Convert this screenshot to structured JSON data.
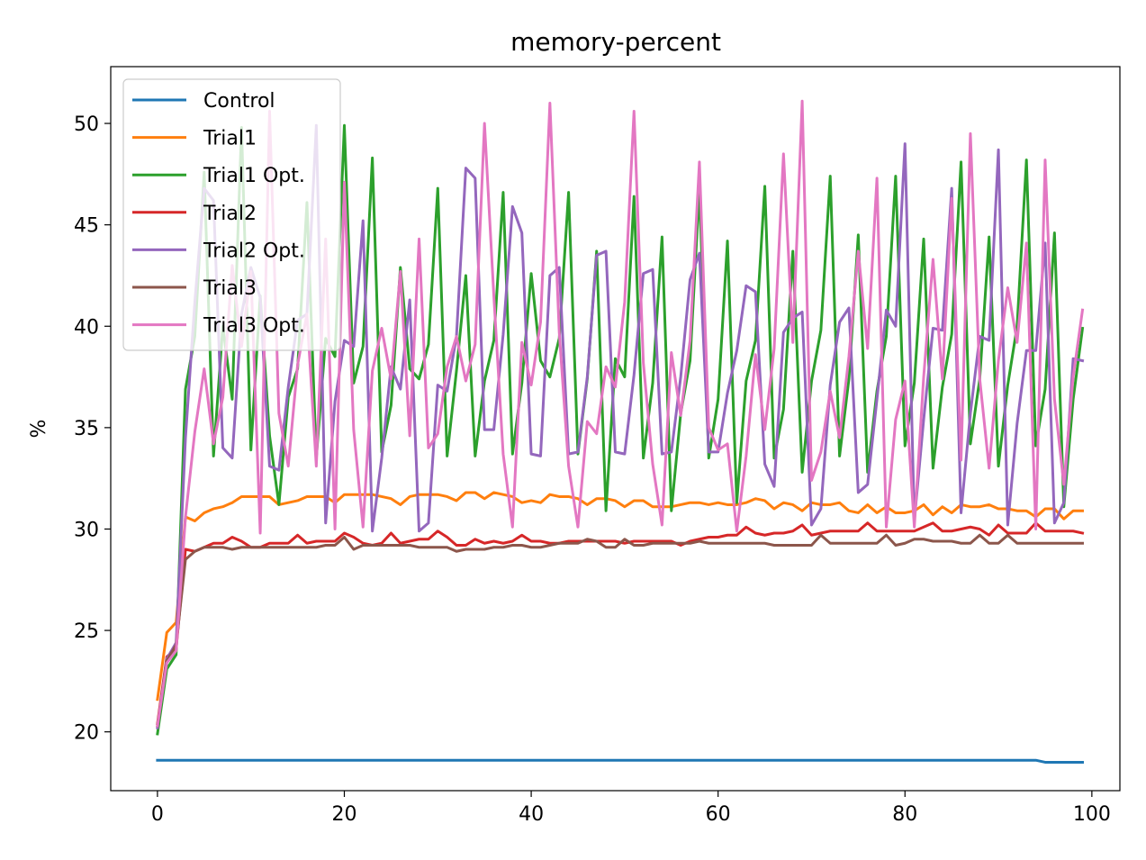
{
  "chart_data": {
    "type": "line",
    "title": "memory-percent",
    "xlabel": "",
    "ylabel": "%",
    "xlim": [
      -5,
      103
    ],
    "ylim": [
      17.1,
      52.8
    ],
    "xticks": [
      0,
      20,
      40,
      60,
      80,
      100
    ],
    "yticks": [
      20,
      25,
      30,
      35,
      40,
      45,
      50
    ],
    "grid": false,
    "legend_position": "upper-left",
    "x": [
      0,
      1,
      2,
      3,
      4,
      5,
      6,
      7,
      8,
      9,
      10,
      11,
      12,
      13,
      14,
      15,
      16,
      17,
      18,
      19,
      20,
      21,
      22,
      23,
      24,
      25,
      26,
      27,
      28,
      29,
      30,
      31,
      32,
      33,
      34,
      35,
      36,
      37,
      38,
      39,
      40,
      41,
      42,
      43,
      44,
      45,
      46,
      47,
      48,
      49,
      50,
      51,
      52,
      53,
      54,
      55,
      56,
      57,
      58,
      59,
      60,
      61,
      62,
      63,
      64,
      65,
      66,
      67,
      68,
      69,
      70,
      71,
      72,
      73,
      74,
      75,
      76,
      77,
      78,
      79,
      80,
      81,
      82,
      83,
      84,
      85,
      86,
      87,
      88,
      89,
      90,
      91,
      92,
      93,
      94,
      95,
      96,
      97,
      98,
      99
    ],
    "series": [
      {
        "name": "Control",
        "color": "#1f77b4",
        "values": [
          18.6,
          18.6,
          18.6,
          18.6,
          18.6,
          18.6,
          18.6,
          18.6,
          18.6,
          18.6,
          18.6,
          18.6,
          18.6,
          18.6,
          18.6,
          18.6,
          18.6,
          18.6,
          18.6,
          18.6,
          18.6,
          18.6,
          18.6,
          18.6,
          18.6,
          18.6,
          18.6,
          18.6,
          18.6,
          18.6,
          18.6,
          18.6,
          18.6,
          18.6,
          18.6,
          18.6,
          18.6,
          18.6,
          18.6,
          18.6,
          18.6,
          18.6,
          18.6,
          18.6,
          18.6,
          18.6,
          18.6,
          18.6,
          18.6,
          18.6,
          18.6,
          18.6,
          18.6,
          18.6,
          18.6,
          18.6,
          18.6,
          18.6,
          18.6,
          18.6,
          18.6,
          18.6,
          18.6,
          18.6,
          18.6,
          18.6,
          18.6,
          18.6,
          18.6,
          18.6,
          18.6,
          18.6,
          18.6,
          18.6,
          18.6,
          18.6,
          18.6,
          18.6,
          18.6,
          18.6,
          18.6,
          18.6,
          18.6,
          18.6,
          18.6,
          18.6,
          18.6,
          18.6,
          18.6,
          18.6,
          18.6,
          18.6,
          18.6,
          18.6,
          18.6,
          18.5,
          18.5,
          18.5,
          18.5,
          18.5
        ]
      },
      {
        "name": "Trial1",
        "color": "#ff7f0e",
        "values": [
          21.6,
          24.9,
          25.4,
          30.6,
          30.4,
          30.8,
          31.0,
          31.1,
          31.3,
          31.6,
          31.6,
          31.6,
          31.6,
          31.2,
          31.3,
          31.4,
          31.6,
          31.6,
          31.6,
          31.3,
          31.7,
          31.7,
          31.7,
          31.7,
          31.6,
          31.5,
          31.2,
          31.6,
          31.7,
          31.7,
          31.7,
          31.6,
          31.4,
          31.8,
          31.8,
          31.5,
          31.8,
          31.7,
          31.6,
          31.3,
          31.4,
          31.3,
          31.7,
          31.6,
          31.6,
          31.5,
          31.2,
          31.5,
          31.5,
          31.4,
          31.1,
          31.4,
          31.4,
          31.1,
          31.1,
          31.1,
          31.2,
          31.3,
          31.3,
          31.2,
          31.3,
          31.2,
          31.2,
          31.3,
          31.5,
          31.4,
          31.0,
          31.3,
          31.2,
          30.9,
          31.3,
          31.2,
          31.2,
          31.3,
          30.9,
          30.8,
          31.2,
          30.8,
          31.1,
          30.8,
          30.8,
          30.9,
          31.2,
          30.7,
          31.1,
          30.8,
          31.2,
          31.1,
          31.1,
          31.2,
          31.0,
          31.0,
          30.9,
          30.9,
          30.6,
          31.0,
          31.0,
          30.5,
          30.9,
          30.9
        ]
      },
      {
        "name": "Trial1 Opt.",
        "color": "#2ca02c",
        "values": [
          19.9,
          23.1,
          23.8,
          36.9,
          39.5,
          47.6,
          33.6,
          40.0,
          36.4,
          49.8,
          33.9,
          41.5,
          34.6,
          31.2,
          36.5,
          37.9,
          46.1,
          33.5,
          39.4,
          38.5,
          49.9,
          37.2,
          39.0,
          48.3,
          33.8,
          36.1,
          42.9,
          37.9,
          37.4,
          39.1,
          46.8,
          33.6,
          37.8,
          42.5,
          33.6,
          37.3,
          39.3,
          46.6,
          33.7,
          37.2,
          42.6,
          38.3,
          37.5,
          39.4,
          46.6,
          33.7,
          37.4,
          43.7,
          30.9,
          38.4,
          37.5,
          46.4,
          33.5,
          37.2,
          44.4,
          30.9,
          35.7,
          38.3,
          46.8,
          33.5,
          36.4,
          44.2,
          31.3,
          37.3,
          39.3,
          46.9,
          33.5,
          35.9,
          43.7,
          32.8,
          37.3,
          39.8,
          47.4,
          33.6,
          37.4,
          44.5,
          32.8,
          36.8,
          39.5,
          47.4,
          34.1,
          37.2,
          44.3,
          33.0,
          37.0,
          39.6,
          48.1,
          34.2,
          37.4,
          44.4,
          33.1,
          37.1,
          40.0,
          48.2,
          34.1,
          36.9,
          44.6,
          31.1,
          36.4,
          39.9
        ]
      },
      {
        "name": "Trial2",
        "color": "#d62728",
        "values": [
          20.4,
          23.7,
          24.1,
          29.0,
          28.9,
          29.1,
          29.3,
          29.3,
          29.6,
          29.4,
          29.1,
          29.1,
          29.3,
          29.3,
          29.3,
          29.7,
          29.3,
          29.4,
          29.4,
          29.4,
          29.8,
          29.6,
          29.3,
          29.2,
          29.3,
          29.8,
          29.3,
          29.4,
          29.5,
          29.5,
          29.9,
          29.6,
          29.2,
          29.2,
          29.5,
          29.3,
          29.4,
          29.3,
          29.4,
          29.7,
          29.4,
          29.4,
          29.3,
          29.3,
          29.4,
          29.4,
          29.4,
          29.4,
          29.4,
          29.4,
          29.3,
          29.4,
          29.4,
          29.4,
          29.4,
          29.4,
          29.2,
          29.4,
          29.5,
          29.6,
          29.6,
          29.7,
          29.7,
          30.1,
          29.8,
          29.7,
          29.8,
          29.8,
          29.9,
          30.2,
          29.7,
          29.8,
          29.9,
          29.9,
          29.9,
          29.9,
          30.3,
          29.9,
          29.9,
          29.9,
          29.9,
          29.9,
          30.1,
          30.3,
          29.9,
          29.9,
          30.0,
          30.1,
          30.0,
          29.7,
          30.2,
          29.8,
          29.8,
          29.8,
          30.3,
          29.9,
          29.9,
          29.9,
          29.9,
          29.8
        ]
      },
      {
        "name": "Trial2 Opt.",
        "color": "#9467bd",
        "values": [
          20.2,
          23.6,
          24.4,
          34.5,
          41.2,
          46.8,
          46.2,
          34.0,
          33.5,
          40.6,
          42.9,
          41.4,
          33.1,
          32.9,
          37.0,
          40.3,
          40.6,
          49.9,
          30.3,
          36.3,
          39.3,
          39.0,
          45.2,
          29.9,
          33.5,
          38.0,
          36.9,
          41.3,
          29.9,
          30.3,
          37.1,
          36.8,
          39.5,
          47.8,
          47.3,
          34.9,
          34.9,
          39.6,
          45.9,
          44.6,
          33.7,
          33.6,
          42.5,
          42.9,
          33.7,
          33.8,
          37.5,
          43.5,
          43.7,
          33.8,
          33.7,
          37.6,
          42.6,
          42.8,
          33.7,
          33.8,
          37.5,
          42.3,
          43.6,
          33.8,
          33.8,
          36.7,
          38.8,
          42.0,
          41.7,
          33.2,
          32.1,
          39.7,
          40.4,
          40.7,
          30.2,
          31.0,
          37.1,
          40.2,
          40.9,
          31.8,
          32.2,
          36.4,
          40.8,
          40.0,
          49.0,
          30.4,
          35.4,
          39.9,
          39.8,
          46.8,
          30.8,
          35.7,
          39.5,
          39.3,
          48.7,
          30.2,
          35.2,
          38.8,
          38.8,
          44.1,
          30.3,
          31.3,
          38.4,
          38.3
        ]
      },
      {
        "name": "Trial3",
        "color": "#8c564b",
        "values": [
          20.3,
          23.5,
          24.3,
          28.5,
          28.9,
          29.1,
          29.1,
          29.1,
          29.0,
          29.1,
          29.1,
          29.1,
          29.1,
          29.1,
          29.1,
          29.1,
          29.1,
          29.1,
          29.2,
          29.2,
          29.6,
          29.0,
          29.2,
          29.2,
          29.2,
          29.2,
          29.2,
          29.2,
          29.1,
          29.1,
          29.1,
          29.1,
          28.9,
          29.0,
          29.0,
          29.0,
          29.1,
          29.1,
          29.2,
          29.2,
          29.1,
          29.1,
          29.2,
          29.3,
          29.3,
          29.3,
          29.5,
          29.4,
          29.1,
          29.1,
          29.5,
          29.2,
          29.2,
          29.3,
          29.3,
          29.3,
          29.3,
          29.3,
          29.4,
          29.3,
          29.3,
          29.3,
          29.3,
          29.3,
          29.3,
          29.3,
          29.2,
          29.2,
          29.2,
          29.2,
          29.2,
          29.7,
          29.3,
          29.3,
          29.3,
          29.3,
          29.3,
          29.3,
          29.7,
          29.2,
          29.3,
          29.5,
          29.5,
          29.4,
          29.4,
          29.4,
          29.3,
          29.3,
          29.7,
          29.3,
          29.3,
          29.7,
          29.3,
          29.3,
          29.3,
          29.3,
          29.3,
          29.3,
          29.3,
          29.3
        ]
      },
      {
        "name": "Trial3 Opt.",
        "color": "#e377c2",
        "values": [
          20.3,
          23.4,
          24.0,
          30.6,
          34.8,
          37.9,
          34.2,
          36.5,
          43.0,
          39.0,
          42.7,
          29.8,
          50.6,
          35.7,
          33.1,
          38.1,
          40.6,
          33.1,
          44.3,
          30.0,
          47.1,
          34.9,
          30.1,
          37.8,
          39.9,
          37.4,
          42.7,
          34.6,
          44.3,
          34.0,
          34.7,
          38.0,
          39.5,
          37.3,
          39.1,
          50.0,
          41.5,
          33.7,
          30.1,
          39.2,
          37.1,
          40.2,
          51.0,
          39.7,
          33.1,
          30.1,
          35.3,
          34.7,
          38.0,
          37.0,
          41.2,
          50.6,
          38.2,
          33.2,
          30.2,
          38.7,
          35.6,
          39.3,
          48.1,
          35.0,
          33.9,
          34.2,
          29.9,
          33.6,
          38.6,
          34.9,
          38.9,
          48.5,
          39.2,
          51.1,
          32.4,
          33.8,
          36.8,
          34.5,
          38.5,
          43.7,
          38.9,
          47.3,
          30.1,
          35.4,
          37.3,
          30.1,
          37.5,
          43.3,
          37.4,
          46.3,
          33.4,
          49.5,
          37.4,
          33.0,
          38.3,
          41.9,
          39.2,
          44.1,
          30.0,
          48.2,
          36.4,
          32.2,
          37.5,
          40.8
        ]
      }
    ]
  }
}
